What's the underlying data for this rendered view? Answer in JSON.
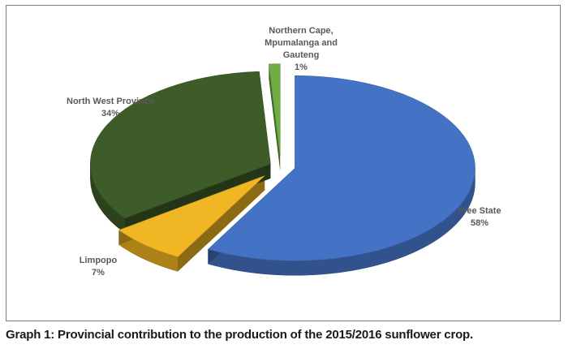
{
  "chart_data": {
    "type": "pie",
    "title": "",
    "slices": [
      {
        "label": "Free State",
        "value": 58,
        "value_label": "58%",
        "color": "#4472c4"
      },
      {
        "label": "Limpopo",
        "value": 7,
        "value_label": "7%",
        "color": "#f0b623"
      },
      {
        "label": "North West Province",
        "value": 34,
        "value_label": "34%",
        "color": "#3e5c27"
      },
      {
        "label": "Northern Cape, Mpumalanga and Gauteng",
        "label_lines": [
          "Northern Cape,",
          "Mpumalanga and",
          "Gauteng"
        ],
        "value": 1,
        "value_label": "1%",
        "color": "#6fac46"
      }
    ],
    "style": "3d-exploded"
  },
  "caption": "Graph 1: Provincial contribution to the production of the 2015/2016 sunflower crop."
}
